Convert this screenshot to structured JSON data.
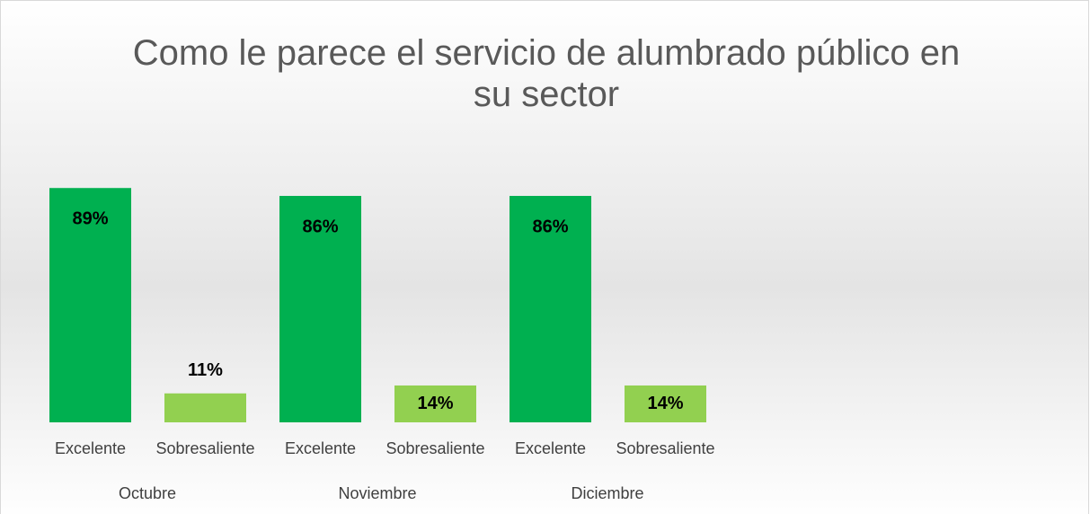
{
  "chart_data": {
    "type": "bar",
    "title": "Como le parece el servicio de alumbrado público en su sector",
    "categories": [
      "Octubre",
      "Noviembre",
      "Diciembre"
    ],
    "series": [
      {
        "name": "Excelente",
        "color": "#00b050",
        "values": [
          89,
          86,
          86
        ],
        "value_labels": [
          "89%",
          "86%",
          "86%"
        ]
      },
      {
        "name": "Sobresaliente",
        "color": "#92d050",
        "values": [
          11,
          14,
          14
        ],
        "value_labels": [
          "11%",
          "14%",
          "14%"
        ]
      }
    ],
    "ylim": [
      0,
      100
    ]
  }
}
